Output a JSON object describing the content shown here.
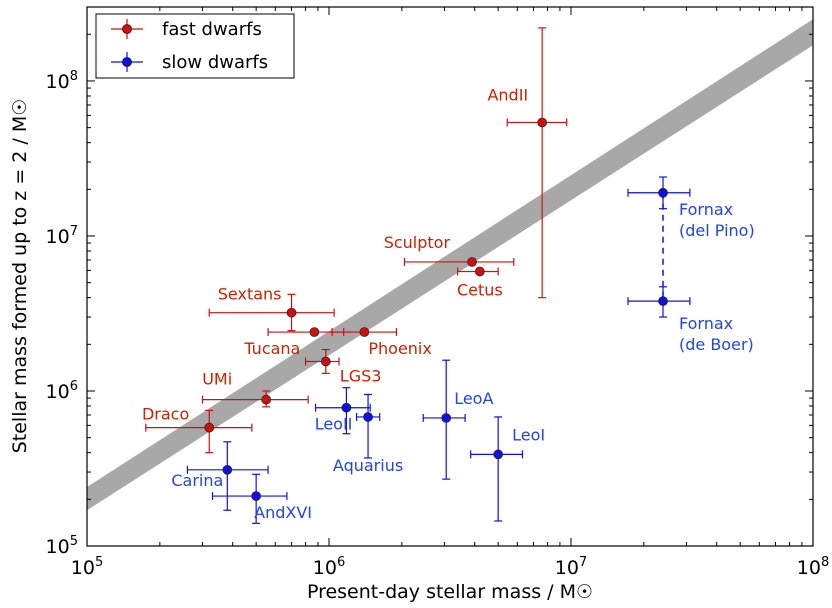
{
  "chart_data": {
    "type": "scatter",
    "xlabel": "Present-day stellar mass  / M☉",
    "ylabel": "Stellar mass formed up to z = 2 / M☉",
    "xscale": "log",
    "yscale": "log",
    "xlim": [
      100000,
      100000000
    ],
    "ylim": [
      100000,
      300000000
    ],
    "x_ticks": [
      {
        "label": "10",
        "exp": "5",
        "value": 100000
      },
      {
        "label": "10",
        "exp": "6",
        "value": 1000000
      },
      {
        "label": "10",
        "exp": "7",
        "value": 10000000
      },
      {
        "label": "10",
        "exp": "8",
        "value": 100000000
      }
    ],
    "y_ticks": [
      {
        "label": "10",
        "exp": "5",
        "value": 100000
      },
      {
        "label": "10",
        "exp": "6",
        "value": 1000000
      },
      {
        "label": "10",
        "exp": "7",
        "value": 10000000
      },
      {
        "label": "10",
        "exp": "8",
        "value": 100000000
      }
    ],
    "legend": {
      "placement": "top-left",
      "entries": [
        {
          "name": "fast dwarfs",
          "color": "#cc1111"
        },
        {
          "name": "slow dwarfs",
          "color": "#1111dd"
        }
      ]
    },
    "band": {
      "color": "#a8a8a8",
      "lower": [
        [
          100000,
          170000
        ],
        [
          100000000,
          170000000
        ]
      ],
      "upper": [
        [
          100000,
          240000
        ],
        [
          100000000,
          250000000
        ]
      ]
    },
    "series": [
      {
        "name": "fast dwarfs",
        "color": "#cc1111",
        "marker_fill": "#cc1111",
        "label_color": "#cc2200",
        "points": [
          {
            "label": "AndII",
            "x": 7600000,
            "y": 54000000,
            "xerr": [
              5450000,
              9600000
            ],
            "yerr": [
              4000000,
              220000000
            ],
            "label_anchor": "end",
            "label_dx": -14,
            "label_dy": -22
          },
          {
            "label": "Sculptor",
            "x": 3900000,
            "y": 6800000,
            "xerr": [
              2050000,
              5800000
            ],
            "yerr": null,
            "label_anchor": "end",
            "label_dx": -22,
            "label_dy": -14
          },
          {
            "label": "Cetus",
            "x": 4200000,
            "y": 5900000,
            "xerr": [
              3400000,
              5000000
            ],
            "yerr": null,
            "label_anchor": "middle",
            "label_dx": 0,
            "label_dy": 24
          },
          {
            "label": "Sextans",
            "x": 700000,
            "y": 3200000,
            "xerr": [
              320000,
              1050000
            ],
            "yerr": [
              2450000,
              4200000
            ],
            "label_anchor": "end",
            "label_dx": -10,
            "label_dy": -13
          },
          {
            "label": "Tucana",
            "x": 870000,
            "y": 2400000,
            "xerr": [
              560000,
              1150000
            ],
            "yerr": null,
            "label_anchor": "end",
            "label_dx": -14,
            "label_dy": 22
          },
          {
            "label": "Phoenix",
            "x": 1400000,
            "y": 2400000,
            "xerr": [
              1030000,
              1900000
            ],
            "yerr": null,
            "label_anchor": "start",
            "label_dx": 4,
            "label_dy": 22
          },
          {
            "label": "LGS3",
            "x": 970000,
            "y": 1550000,
            "xerr": [
              800000,
              1100000
            ],
            "yerr": [
              1300000,
              1850000
            ],
            "label_anchor": "start",
            "label_dx": 14,
            "label_dy": 20
          },
          {
            "label": "UMi",
            "x": 550000,
            "y": 880000,
            "xerr": [
              300000,
              820000
            ],
            "yerr": [
              790000,
              1000000
            ],
            "label_anchor": "end",
            "label_dx": -34,
            "label_dy": -15
          },
          {
            "label": "Draco",
            "x": 320000,
            "y": 580000,
            "xerr": [
              175000,
              480000
            ],
            "yerr": [
              400000,
              750000
            ],
            "label_anchor": "end",
            "label_dx": -20,
            "label_dy": -8
          }
        ]
      },
      {
        "name": "slow dwarfs",
        "color": "#1111dd",
        "marker_fill": "#1111dd",
        "label_color": "#2244ee",
        "points": [
          {
            "label": "Fornax\n(del Pino)",
            "x": 24000000,
            "y": 19000000,
            "xerr": [
              17200000,
              31000000
            ],
            "yerr": [
              15000000,
              24000000
            ],
            "label_anchor": "start",
            "label_dx": 16,
            "label_dy": 22
          },
          {
            "label": "Fornax\n(de Boer)",
            "x": 24000000,
            "y": 3800000,
            "xerr": [
              17200000,
              31000000
            ],
            "yerr": [
              3000000,
              4700000
            ],
            "label_anchor": "start",
            "label_dx": 16,
            "label_dy": 28
          },
          {
            "label": "LeoII",
            "x": 1180000,
            "y": 780000,
            "xerr": [
              880000,
              1480000
            ],
            "yerr": [
              530000,
              1050000
            ],
            "label_anchor": "end",
            "label_dx": 6,
            "label_dy": 22
          },
          {
            "label": "Aquarius",
            "x": 1450000,
            "y": 680000,
            "xerr": [
              1300000,
              1620000
            ],
            "yerr": [
              370000,
              950000
            ],
            "label_anchor": "middle",
            "label_dx": 0,
            "label_dy": 54
          },
          {
            "label": "LeoA",
            "x": 3050000,
            "y": 670000,
            "xerr": [
              2450000,
              3650000
            ],
            "yerr": [
              270000,
              1580000
            ],
            "label_anchor": "start",
            "label_dx": 8,
            "label_dy": -14
          },
          {
            "label": "LeoI",
            "x": 5000000,
            "y": 390000,
            "xerr": [
              3850000,
              6300000
            ],
            "yerr": [
              145000,
              680000
            ],
            "label_anchor": "start",
            "label_dx": 14,
            "label_dy": -14
          },
          {
            "label": "Carina",
            "x": 380000,
            "y": 310000,
            "xerr": [
              260000,
              560000
            ],
            "yerr": [
              170000,
              470000
            ],
            "label_anchor": "end",
            "label_dx": -4,
            "label_dy": 16
          },
          {
            "label": "AndXVI",
            "x": 500000,
            "y": 210000,
            "xerr": [
              330000,
              670000
            ],
            "yerr": [
              140000,
              290000
            ],
            "label_anchor": "start",
            "label_dx": -2,
            "label_dy": 22
          }
        ]
      }
    ],
    "connector": {
      "from": "Fornax\n(del Pino)",
      "to": "Fornax\n(de Boer)",
      "style": "dashed",
      "color": "#1111dd"
    }
  }
}
